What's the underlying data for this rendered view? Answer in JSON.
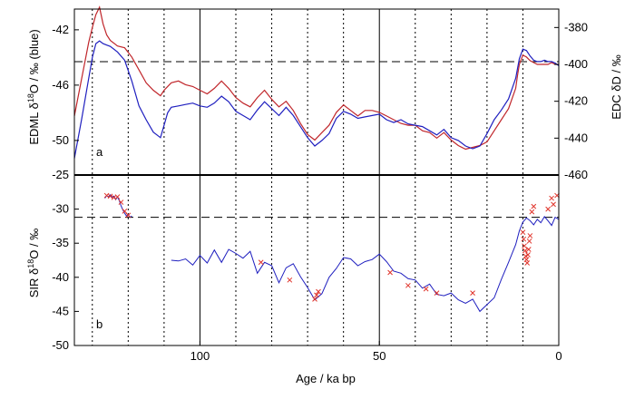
{
  "chart_data": [
    {
      "panel": "a",
      "type": "line",
      "panel_label": "a",
      "xlabel": "Age / ka bp",
      "xlim": [
        135,
        0
      ],
      "ylabel_left": "EDML δ18O / ‰ (blue)",
      "ylim_left": [
        -52.5,
        -40.5
      ],
      "yticks_left": [
        -42,
        -46,
        -50
      ],
      "ylabel_right": "EDC δD / ‰",
      "ylim_right": [
        -460,
        -370
      ],
      "yticks_right": [
        -380,
        -400,
        -420,
        -440,
        -460
      ],
      "dashed_reference_left": -44.3,
      "colors": {
        "EDML": "#1f1fbf",
        "EDC": "#c0262b"
      },
      "series": [
        {
          "key": "EDML",
          "axis": "left",
          "x": [
            135,
            133,
            131,
            130,
            129,
            128,
            127,
            126,
            125,
            123,
            121,
            119,
            117,
            115,
            113,
            111,
            110,
            109,
            108,
            106,
            104,
            102,
            100,
            98,
            96,
            94,
            92,
            90,
            88,
            86,
            84,
            82,
            80,
            78,
            76,
            74,
            72,
            70,
            68,
            66,
            64,
            62,
            60,
            58,
            56,
            54,
            52,
            50,
            48,
            46,
            44,
            42,
            40,
            38,
            36,
            34,
            32,
            30,
            28,
            26,
            24,
            22,
            20,
            18,
            16,
            14,
            12,
            11.5,
            11,
            10,
            9,
            8,
            7,
            6,
            5,
            4,
            3,
            2,
            1,
            0
          ],
          "y": [
            -51.3,
            -48.5,
            -45.5,
            -44.0,
            -43.0,
            -42.8,
            -43.0,
            -43.1,
            -43.2,
            -43.6,
            -44.2,
            -45.7,
            -47.5,
            -48.5,
            -49.4,
            -49.8,
            -48.9,
            -48.0,
            -47.6,
            -47.5,
            -47.4,
            -47.3,
            -47.5,
            -47.6,
            -47.3,
            -46.8,
            -47.2,
            -47.9,
            -48.2,
            -48.5,
            -47.8,
            -47.2,
            -47.7,
            -48.2,
            -47.6,
            -48.2,
            -49.0,
            -49.8,
            -50.4,
            -50.0,
            -49.5,
            -48.4,
            -47.9,
            -48.1,
            -48.4,
            -48.3,
            -48.2,
            -48.1,
            -48.5,
            -48.7,
            -48.5,
            -48.8,
            -48.9,
            -49.0,
            -49.3,
            -49.6,
            -49.2,
            -49.8,
            -50.0,
            -50.4,
            -50.6,
            -50.4,
            -49.5,
            -48.5,
            -47.8,
            -47.0,
            -45.5,
            -44.8,
            -44.1,
            -43.4,
            -43.5,
            -43.9,
            -44.2,
            -44.3,
            -44.3,
            -44.2,
            -44.3,
            -44.3,
            -44.4,
            -44.6
          ]
        },
        {
          "key": "EDC",
          "axis": "right",
          "x": [
            135,
            133,
            131,
            130,
            129,
            128,
            127,
            126,
            125,
            123,
            121,
            119,
            117,
            115,
            113,
            111,
            110,
            109,
            108,
            106,
            104,
            102,
            100,
            98,
            96,
            94,
            92,
            90,
            88,
            86,
            84,
            82,
            80,
            78,
            76,
            74,
            72,
            70,
            68,
            66,
            64,
            62,
            60,
            58,
            56,
            54,
            52,
            50,
            48,
            46,
            44,
            42,
            40,
            38,
            36,
            34,
            32,
            30,
            28,
            26,
            24,
            22,
            20,
            18,
            16,
            14,
            12,
            11.5,
            11,
            10,
            9,
            8,
            7,
            6,
            5,
            4,
            3,
            2,
            1,
            0
          ],
          "y": [
            -428,
            -408,
            -388,
            -380,
            -373,
            -369,
            -378,
            -384,
            -387,
            -390,
            -391,
            -396,
            -403,
            -410,
            -414,
            -417,
            -414,
            -412,
            -410,
            -409,
            -411,
            -412,
            -414,
            -416,
            -413,
            -409,
            -413,
            -418,
            -421,
            -423,
            -418,
            -414,
            -419,
            -423,
            -420,
            -425,
            -432,
            -438,
            -441,
            -437,
            -433,
            -426,
            -422,
            -425,
            -428,
            -425,
            -425,
            -426,
            -428,
            -430,
            -432,
            -433,
            -433,
            -436,
            -437,
            -440,
            -437,
            -441,
            -444,
            -446,
            -445,
            -444,
            -442,
            -436,
            -430,
            -424,
            -413,
            -406,
            -400,
            -395,
            -396,
            -398,
            -399,
            -400,
            -400,
            -400,
            -400,
            -399,
            -400,
            -400
          ]
        }
      ]
    },
    {
      "panel": "b",
      "type": "scatter",
      "panel_label": "b",
      "xlabel": "Age / ka bp",
      "xlim": [
        135,
        0
      ],
      "xticks": [
        100,
        50,
        0
      ],
      "ylabel": "SIR δ18O / ‰",
      "ylim": [
        -50,
        -25
      ],
      "yticks": [
        -25,
        -30,
        -35,
        -40,
        -45,
        -50
      ],
      "dashed_reference": -31.2,
      "vertical_solid_lines": [
        100,
        50
      ],
      "vertical_dotted_lines": [
        130,
        120,
        110,
        90,
        80,
        70,
        60,
        40,
        30,
        20,
        10
      ],
      "colors": {
        "line": "#1f1fbf",
        "markers": "#e0332a"
      },
      "line_segments": [
        {
          "x": [
            126.5,
            126,
            125.5,
            125,
            124.5,
            124,
            123.5,
            123,
            122.5,
            122,
            121.5,
            121,
            120.5,
            120,
            119.5,
            119
          ],
          "y": [
            -28.4,
            -28.0,
            -28.2,
            -27.9,
            -28.3,
            -28.1,
            -28.6,
            -28.2,
            -28.7,
            -29.5,
            -30.1,
            -30.6,
            -31.0,
            -30.8,
            -31.2,
            -31.0
          ]
        },
        {
          "x": [
            108,
            106,
            104,
            102,
            100,
            98,
            96,
            94,
            92,
            90,
            88,
            86,
            84,
            82,
            80,
            78,
            76,
            74,
            72,
            70,
            68,
            66,
            64,
            62,
            60,
            58,
            56,
            54,
            52,
            50,
            48,
            46,
            44,
            42,
            40,
            38,
            36,
            34,
            32,
            30,
            28,
            26,
            24,
            22,
            20,
            18,
            16,
            14,
            12,
            11,
            10,
            9,
            8,
            7,
            6,
            5,
            4,
            3,
            2,
            1,
            0
          ],
          "y": [
            -37.5,
            -37.6,
            -37.3,
            -38.2,
            -36.8,
            -37.9,
            -36.0,
            -37.8,
            -35.9,
            -36.5,
            -37.2,
            -36.2,
            -39.4,
            -37.8,
            -38.3,
            -40.8,
            -38.6,
            -38.0,
            -39.9,
            -41.5,
            -43.3,
            -42.4,
            -40.0,
            -38.7,
            -37.1,
            -37.3,
            -38.3,
            -37.7,
            -37.4,
            -36.6,
            -37.7,
            -39.1,
            -39.4,
            -40.2,
            -40.4,
            -41.6,
            -41.0,
            -42.5,
            -42.7,
            -42.3,
            -43.3,
            -43.8,
            -43.2,
            -45.0,
            -44.0,
            -43.0,
            -40.3,
            -37.8,
            -35.2,
            -33.2,
            -31.9,
            -31.3,
            -31.7,
            -32.3,
            -31.5,
            -32.0,
            -31.1,
            -31.7,
            -32.4,
            -31.2,
            -31.5
          ]
        }
      ],
      "markers_x": [
        126,
        125,
        124,
        123,
        122,
        121,
        120,
        83,
        75,
        68,
        67.5,
        67,
        47,
        42,
        37,
        34,
        24,
        10,
        9.8,
        9.6,
        9.4,
        9.2,
        9,
        8.8,
        8.6,
        8.4,
        8.2,
        8,
        7.5,
        7,
        3,
        2,
        1.5,
        0.5
      ],
      "markers_y": [
        -28.0,
        -28.1,
        -28.3,
        -28.2,
        -29.0,
        -30.3,
        -30.9,
        -37.8,
        -40.4,
        -43.2,
        -42.6,
        -42.1,
        -39.3,
        -41.2,
        -41.7,
        -42.3,
        -42.3,
        -33.4,
        -34.4,
        -35.4,
        -36.1,
        -36.9,
        -37.4,
        -37.9,
        -36.7,
        -35.9,
        -34.7,
        -33.9,
        -30.4,
        -29.6,
        -30.0,
        -28.4,
        -29.3,
        -28.0
      ]
    }
  ]
}
